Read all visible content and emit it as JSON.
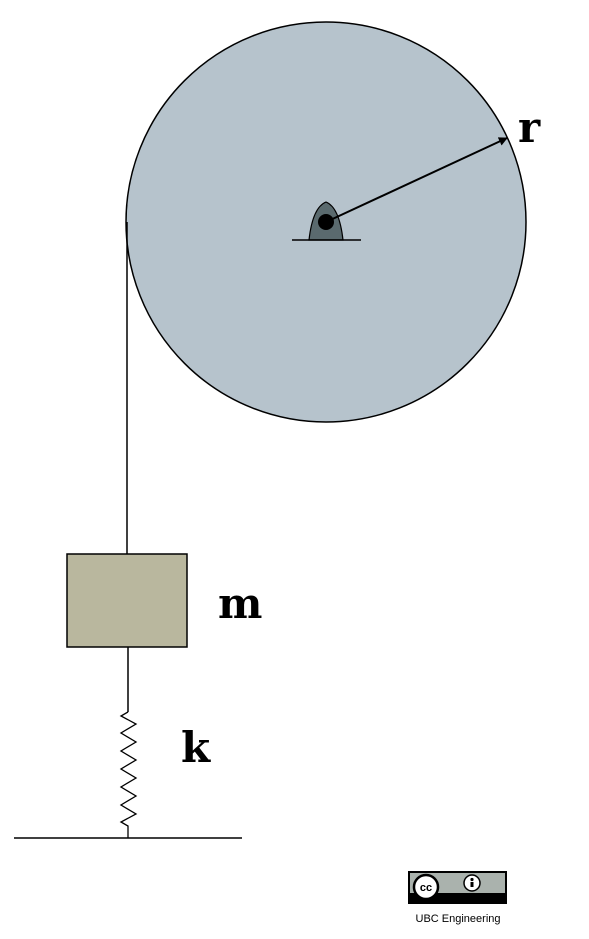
{
  "labels": {
    "radius": "r",
    "mass": "m",
    "spring": "k"
  },
  "license": {
    "badge_cc": "cc",
    "badge_by": "BY",
    "credit": "UBC Engineering"
  },
  "colors": {
    "pulley_fill": "#b6c3cc",
    "pivot_fill": "#5a6a6e",
    "mass_fill": "#b9b79e",
    "stroke": "#000000",
    "badge_bg": "#aab2ad"
  }
}
